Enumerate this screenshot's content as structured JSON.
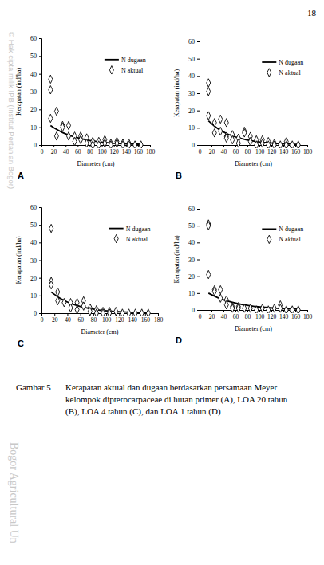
{
  "page": {
    "number": "18",
    "caption_label": "Gambar 5",
    "caption": [
      "Kerapatan aktual dan dugaan berdasarkan persamaan Meyer",
      "kelompok dipterocarpaceae di hutan primer (A), LOA 20 tahun",
      "(B), LOA 4 tahun (C), dan LOA 1 tahun (D)"
    ],
    "watermark": [
      "© Hak cipta milik IPB (Institut Pertanian Bogor)",
      "Bogor Agricultural Un"
    ]
  },
  "chart_data": [
    {
      "type": "scatter",
      "title": "A",
      "x_label": "Diameter (cm)",
      "y_label": "Kerapatan (ind/ha)",
      "xlim": [
        0,
        180
      ],
      "ylim": [
        0,
        60
      ],
      "xticks": [
        0,
        20,
        40,
        60,
        80,
        100,
        120,
        140,
        160,
        180
      ],
      "yticks": [
        0,
        10,
        20,
        30,
        40,
        50,
        60
      ],
      "legend": "top-right",
      "series": [
        {
          "name": "N dugaan",
          "type": "line",
          "color": "#000000",
          "x": [
            15,
            25,
            35,
            45,
            55,
            65,
            75,
            85,
            95,
            105,
            115,
            125,
            135,
            145,
            155,
            165
          ],
          "values": [
            11,
            8.8,
            7,
            5.6,
            4.5,
            3.6,
            2.9,
            2.3,
            1.8,
            1.4,
            1.1,
            0.9,
            0.7,
            0.6,
            0.5,
            0.4
          ]
        },
        {
          "name": "N aktual",
          "type": "scatter",
          "marker": "diamond",
          "color": "#000000",
          "x": [
            15,
            15,
            15,
            25,
            25,
            35,
            35,
            45,
            45,
            55,
            55,
            65,
            65,
            75,
            75,
            85,
            85,
            95,
            95,
            105,
            105,
            115,
            115,
            125,
            125,
            135,
            135,
            145,
            145,
            155,
            165
          ],
          "values": [
            37,
            31,
            15,
            19,
            5,
            11,
            10,
            11,
            5,
            5,
            2,
            5,
            3,
            4,
            1,
            2,
            0,
            2,
            0,
            3,
            1,
            1,
            0,
            2,
            1,
            1,
            0,
            1,
            0,
            0,
            0
          ]
        }
      ]
    },
    {
      "type": "scatter",
      "title": "B",
      "x_label": "Diameter (cm)",
      "y_label": "Kerapatan (ind/ha)",
      "xlim": [
        0,
        180
      ],
      "ylim": [
        0,
        60
      ],
      "xticks": [
        0,
        20,
        40,
        60,
        80,
        100,
        120,
        140,
        160,
        180
      ],
      "yticks": [
        0,
        10,
        20,
        30,
        40,
        50,
        60
      ],
      "legend": "top-right",
      "series": [
        {
          "name": "N dugaan",
          "type": "line",
          "color": "#000000",
          "x": [
            15,
            25,
            35,
            45,
            55,
            65,
            75,
            85,
            95,
            105,
            115,
            125,
            135,
            145,
            155,
            165
          ],
          "values": [
            14,
            11,
            8.6,
            6.7,
            5.3,
            4.2,
            3.3,
            2.6,
            2,
            1.6,
            1.3,
            1,
            0.8,
            0.6,
            0.5,
            0.4
          ]
        },
        {
          "name": "N aktual",
          "type": "scatter",
          "marker": "diamond",
          "color": "#000000",
          "x": [
            15,
            15,
            15,
            25,
            25,
            35,
            35,
            45,
            45,
            45,
            55,
            55,
            65,
            65,
            75,
            75,
            85,
            85,
            95,
            95,
            105,
            105,
            115,
            115,
            125,
            125,
            135,
            145,
            145,
            155,
            165
          ],
          "values": [
            36,
            31,
            17,
            13,
            7,
            15,
            8,
            13,
            5,
            4,
            6,
            3,
            4,
            1,
            8,
            7,
            5,
            2,
            3,
            0,
            3,
            1,
            2,
            0,
            1,
            0,
            0,
            2,
            0,
            0,
            0
          ]
        }
      ]
    },
    {
      "type": "scatter",
      "title": "C",
      "x_label": "Diameter (cm)",
      "y_label": "Kerapatan (ind/ha)",
      "xlim": [
        0,
        180
      ],
      "ylim": [
        0,
        60
      ],
      "xticks": [
        0,
        20,
        40,
        60,
        80,
        100,
        120,
        140,
        160,
        180
      ],
      "yticks": [
        0,
        10,
        20,
        30,
        40,
        50,
        60
      ],
      "legend": "top-right",
      "series": [
        {
          "name": "N dugaan",
          "type": "line",
          "color": "#000000",
          "x": [
            15,
            25,
            35,
            45,
            55,
            65,
            75,
            85,
            95,
            105,
            115,
            125,
            135,
            145,
            155,
            165
          ],
          "values": [
            12,
            9.3,
            7.2,
            5.6,
            4.3,
            3.3,
            2.6,
            2,
            1.5,
            1.2,
            0.9,
            0.7,
            0.55,
            0.4,
            0.3,
            0.25
          ]
        },
        {
          "name": "N aktual",
          "type": "scatter",
          "marker": "diamond",
          "color": "#000000",
          "x": [
            15,
            15,
            15,
            25,
            25,
            35,
            45,
            45,
            55,
            55,
            65,
            65,
            75,
            75,
            85,
            85,
            95,
            95,
            105,
            105,
            115,
            125,
            135,
            145,
            155,
            165
          ],
          "values": [
            48,
            18,
            16,
            12,
            7,
            6,
            6,
            3,
            6,
            2,
            7,
            4,
            3,
            1,
            2,
            0,
            1,
            0,
            1,
            0,
            1,
            0,
            0,
            0,
            0,
            0
          ]
        }
      ]
    },
    {
      "type": "scatter",
      "title": "D",
      "x_label": "Diameter (cm)",
      "y_label": "Kerapatan (ind/ha)",
      "xlim": [
        0,
        180
      ],
      "ylim": [
        0,
        60
      ],
      "xticks": [
        0,
        20,
        40,
        60,
        80,
        100,
        120,
        140,
        160,
        180
      ],
      "yticks": [
        0,
        10,
        20,
        30,
        40,
        50,
        60
      ],
      "legend": "top-right",
      "series": [
        {
          "name": "N dugaan",
          "type": "line",
          "color": "#000000",
          "x": [
            15,
            25,
            35,
            45,
            55,
            65,
            75,
            85,
            95,
            105,
            115,
            125,
            135,
            145,
            155,
            165
          ],
          "values": [
            10,
            8.2,
            6.7,
            5.5,
            4.5,
            3.7,
            3,
            2.5,
            2,
            1.7,
            1.4,
            1.1,
            0.9,
            0.75,
            0.6,
            0.5
          ]
        },
        {
          "name": "N aktual",
          "type": "scatter",
          "marker": "diamond",
          "color": "#000000",
          "x": [
            15,
            15,
            15,
            25,
            25,
            35,
            35,
            45,
            45,
            55,
            55,
            65,
            65,
            75,
            85,
            95,
            105,
            115,
            125,
            135,
            135,
            145,
            155,
            165
          ],
          "values": [
            51,
            50,
            21,
            12,
            11,
            12,
            7,
            6,
            3,
            2,
            1,
            2,
            1,
            1,
            1,
            0,
            1,
            0,
            1,
            3,
            1,
            0,
            0,
            0
          ]
        }
      ]
    }
  ]
}
